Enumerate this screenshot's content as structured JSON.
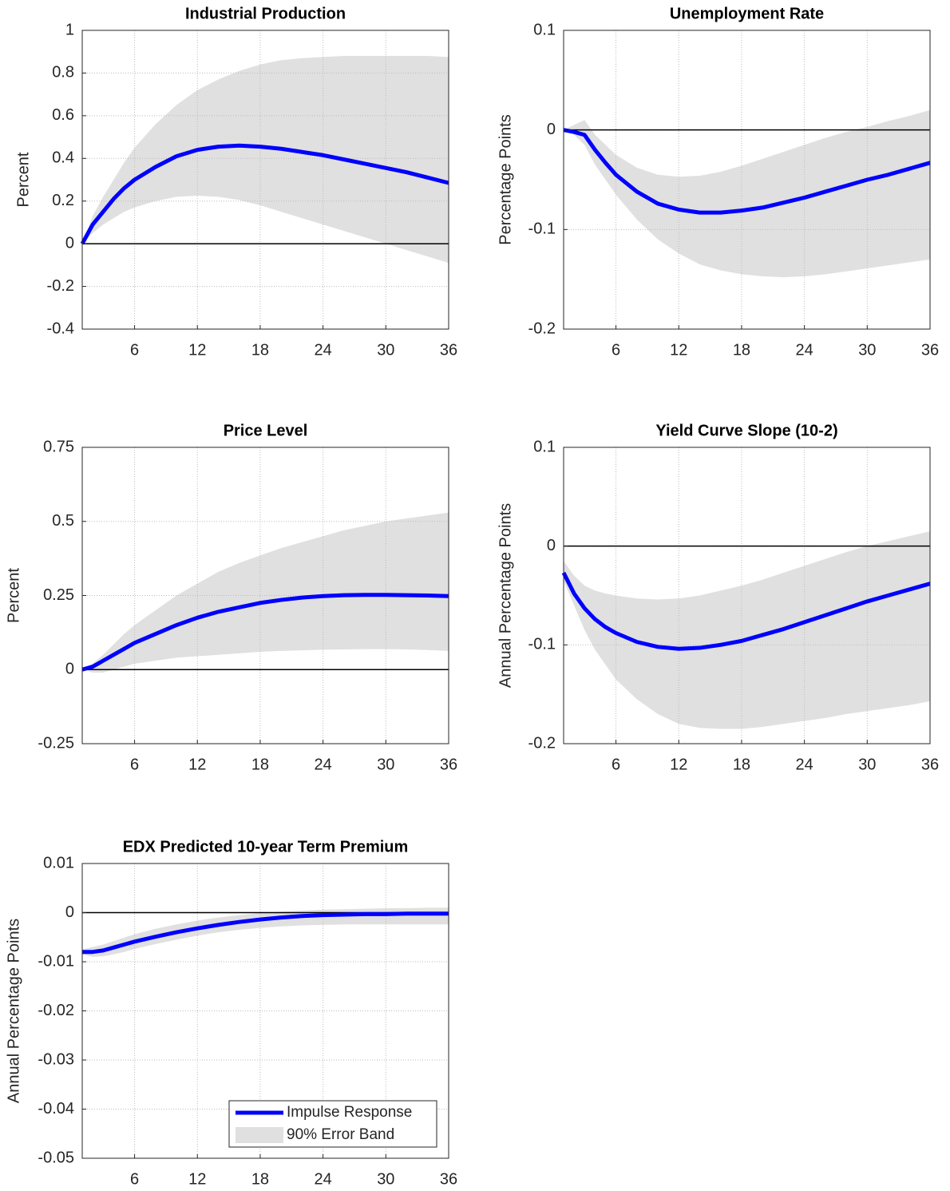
{
  "chart_data": [
    {
      "type": "line",
      "title": "Industrial Production",
      "ylabel": "Percent",
      "x": [
        1,
        2,
        3,
        4,
        5,
        6,
        8,
        10,
        12,
        14,
        16,
        18,
        20,
        22,
        24,
        26,
        28,
        30,
        32,
        34,
        36
      ],
      "xlim": [
        1,
        36
      ],
      "xticks": [
        6,
        12,
        18,
        24,
        30,
        36
      ],
      "ylim": [
        -0.4,
        1
      ],
      "yticks": [
        -0.4,
        -0.2,
        0,
        0.2,
        0.4,
        0.6,
        0.8,
        1
      ],
      "grid": true,
      "hline": 0,
      "series": [
        {
          "color": "#0000ff",
          "values": [
            0,
            0.09,
            0.15,
            0.21,
            0.26,
            0.3,
            0.36,
            0.41,
            0.44,
            0.455,
            0.46,
            0.455,
            0.445,
            0.43,
            0.415,
            0.395,
            0.375,
            0.355,
            0.335,
            0.31,
            0.285
          ]
        },
        {
          "color": "#e0e0e0",
          "lower": [
            0,
            0.05,
            0.09,
            0.12,
            0.15,
            0.17,
            0.2,
            0.22,
            0.225,
            0.22,
            0.205,
            0.18,
            0.15,
            0.12,
            0.09,
            0.06,
            0.03,
            0,
            -0.03,
            -0.06,
            -0.09
          ],
          "upper": [
            0,
            0.13,
            0.22,
            0.3,
            0.38,
            0.45,
            0.56,
            0.65,
            0.72,
            0.77,
            0.81,
            0.84,
            0.86,
            0.87,
            0.875,
            0.88,
            0.88,
            0.88,
            0.88,
            0.88,
            0.875
          ]
        }
      ]
    },
    {
      "type": "line",
      "title": "Unemployment Rate",
      "ylabel": "Percentage Points",
      "x": [
        1,
        2,
        3,
        4,
        5,
        6,
        8,
        10,
        12,
        14,
        16,
        18,
        20,
        22,
        24,
        26,
        28,
        30,
        32,
        34,
        36
      ],
      "xlim": [
        1,
        36
      ],
      "xticks": [
        6,
        12,
        18,
        24,
        30,
        36
      ],
      "ylim": [
        -0.2,
        0.1
      ],
      "yticks": [
        -0.2,
        -0.1,
        0,
        0.1
      ],
      "grid": true,
      "hline": 0,
      "series": [
        {
          "color": "#0000ff",
          "values": [
            0,
            -0.002,
            -0.005,
            -0.02,
            -0.033,
            -0.045,
            -0.062,
            -0.074,
            -0.08,
            -0.083,
            -0.083,
            -0.081,
            -0.078,
            -0.073,
            -0.068,
            -0.062,
            -0.056,
            -0.05,
            -0.045,
            -0.039,
            -0.033
          ]
        },
        {
          "color": "#e0e0e0",
          "lower": [
            0,
            -0.005,
            -0.015,
            -0.035,
            -0.05,
            -0.065,
            -0.09,
            -0.11,
            -0.124,
            -0.135,
            -0.141,
            -0.145,
            -0.147,
            -0.148,
            -0.147,
            -0.145,
            -0.142,
            -0.139,
            -0.136,
            -0.133,
            -0.13
          ],
          "upper": [
            0,
            0.005,
            0.01,
            -0.005,
            -0.015,
            -0.025,
            -0.038,
            -0.045,
            -0.047,
            -0.046,
            -0.042,
            -0.036,
            -0.029,
            -0.022,
            -0.015,
            -0.008,
            -0.002,
            0.003,
            0.009,
            0.014,
            0.02
          ]
        }
      ]
    },
    {
      "type": "line",
      "title": "Price Level",
      "ylabel": "Percent",
      "x": [
        1,
        2,
        3,
        4,
        5,
        6,
        8,
        10,
        12,
        14,
        16,
        18,
        20,
        22,
        24,
        26,
        28,
        30,
        32,
        34,
        36
      ],
      "xlim": [
        1,
        36
      ],
      "xticks": [
        6,
        12,
        18,
        24,
        30,
        36
      ],
      "ylim": [
        -0.25,
        0.75
      ],
      "yticks": [
        -0.25,
        0,
        0.25,
        0.5,
        0.75
      ],
      "grid": true,
      "hline": 0,
      "series": [
        {
          "color": "#0000ff",
          "values": [
            0,
            0.01,
            0.03,
            0.05,
            0.07,
            0.09,
            0.12,
            0.15,
            0.175,
            0.195,
            0.21,
            0.225,
            0.235,
            0.243,
            0.248,
            0.251,
            0.252,
            0.252,
            0.251,
            0.25,
            0.248
          ]
        },
        {
          "color": "#e0e0e0",
          "lower": [
            0,
            -0.01,
            -0.01,
            0,
            0.01,
            0.02,
            0.03,
            0.04,
            0.045,
            0.05,
            0.055,
            0.06,
            0.063,
            0.065,
            0.067,
            0.068,
            0.069,
            0.069,
            0.068,
            0.066,
            0.063
          ],
          "upper": [
            0,
            0.02,
            0.05,
            0.085,
            0.12,
            0.15,
            0.2,
            0.25,
            0.29,
            0.33,
            0.36,
            0.385,
            0.41,
            0.43,
            0.45,
            0.47,
            0.485,
            0.5,
            0.51,
            0.52,
            0.53
          ]
        }
      ]
    },
    {
      "type": "line",
      "title": "Yield Curve Slope (10-2)",
      "ylabel": "Annual Percentage Points",
      "x": [
        1,
        2,
        3,
        4,
        5,
        6,
        8,
        10,
        12,
        14,
        16,
        18,
        20,
        22,
        24,
        26,
        28,
        30,
        32,
        34,
        36
      ],
      "xlim": [
        1,
        36
      ],
      "xticks": [
        6,
        12,
        18,
        24,
        30,
        36
      ],
      "ylim": [
        -0.2,
        0.1
      ],
      "yticks": [
        -0.2,
        -0.1,
        0,
        0.1
      ],
      "grid": true,
      "hline": 0,
      "series": [
        {
          "color": "#0000ff",
          "values": [
            -0.027,
            -0.048,
            -0.063,
            -0.074,
            -0.082,
            -0.088,
            -0.097,
            -0.102,
            -0.104,
            -0.103,
            -0.1,
            -0.096,
            -0.09,
            -0.084,
            -0.077,
            -0.07,
            -0.063,
            -0.056,
            -0.05,
            -0.044,
            -0.038
          ]
        },
        {
          "color": "#e0e0e0",
          "lower": [
            -0.035,
            -0.06,
            -0.085,
            -0.105,
            -0.12,
            -0.135,
            -0.155,
            -0.17,
            -0.18,
            -0.184,
            -0.185,
            -0.185,
            -0.183,
            -0.18,
            -0.177,
            -0.174,
            -0.17,
            -0.167,
            -0.164,
            -0.161,
            -0.157
          ],
          "upper": [
            -0.015,
            -0.03,
            -0.04,
            -0.045,
            -0.048,
            -0.05,
            -0.053,
            -0.054,
            -0.053,
            -0.05,
            -0.045,
            -0.04,
            -0.034,
            -0.027,
            -0.02,
            -0.013,
            -0.006,
            0,
            0.005,
            0.01,
            0.015
          ]
        }
      ]
    },
    {
      "type": "line",
      "title": "EDX Predicted 10-year Term Premium",
      "ylabel": "Annual Percentage Points",
      "x": [
        1,
        2,
        3,
        4,
        5,
        6,
        8,
        10,
        12,
        14,
        16,
        18,
        20,
        22,
        24,
        26,
        28,
        30,
        32,
        34,
        36
      ],
      "xlim": [
        1,
        36
      ],
      "xticks": [
        6,
        12,
        18,
        24,
        30,
        36
      ],
      "ylim": [
        -0.05,
        0.01
      ],
      "yticks": [
        -0.05,
        -0.04,
        -0.03,
        -0.02,
        -0.01,
        0,
        0.01
      ],
      "grid": true,
      "hline": 0,
      "legend": "lower right",
      "series": [
        {
          "name": "Impulse Response",
          "color": "#0000ff",
          "values": [
            -0.008,
            -0.008,
            -0.0077,
            -0.0071,
            -0.0065,
            -0.0059,
            -0.0049,
            -0.004,
            -0.0032,
            -0.0025,
            -0.0019,
            -0.0014,
            -0.001,
            -0.0007,
            -0.0005,
            -0.0004,
            -0.0003,
            -0.0003,
            -0.0002,
            -0.0002,
            -0.0002
          ]
        },
        {
          "name": "90% Error Band",
          "color": "#e0e0e0",
          "lower": [
            -0.0085,
            -0.009,
            -0.0089,
            -0.0085,
            -0.008,
            -0.0074,
            -0.0064,
            -0.0055,
            -0.0047,
            -0.004,
            -0.0035,
            -0.0031,
            -0.0028,
            -0.0026,
            -0.0025,
            -0.0024,
            -0.0024,
            -0.0024,
            -0.0024,
            -0.0024,
            -0.0024
          ],
          "upper": [
            -0.0075,
            -0.007,
            -0.0065,
            -0.0058,
            -0.0051,
            -0.0044,
            -0.0033,
            -0.0024,
            -0.0016,
            -0.001,
            -0.0005,
            -0.0001,
            0.0002,
            0.0004,
            0.0006,
            0.0007,
            0.0008,
            0.0009,
            0.0009,
            0.001,
            0.001
          ]
        }
      ]
    }
  ]
}
